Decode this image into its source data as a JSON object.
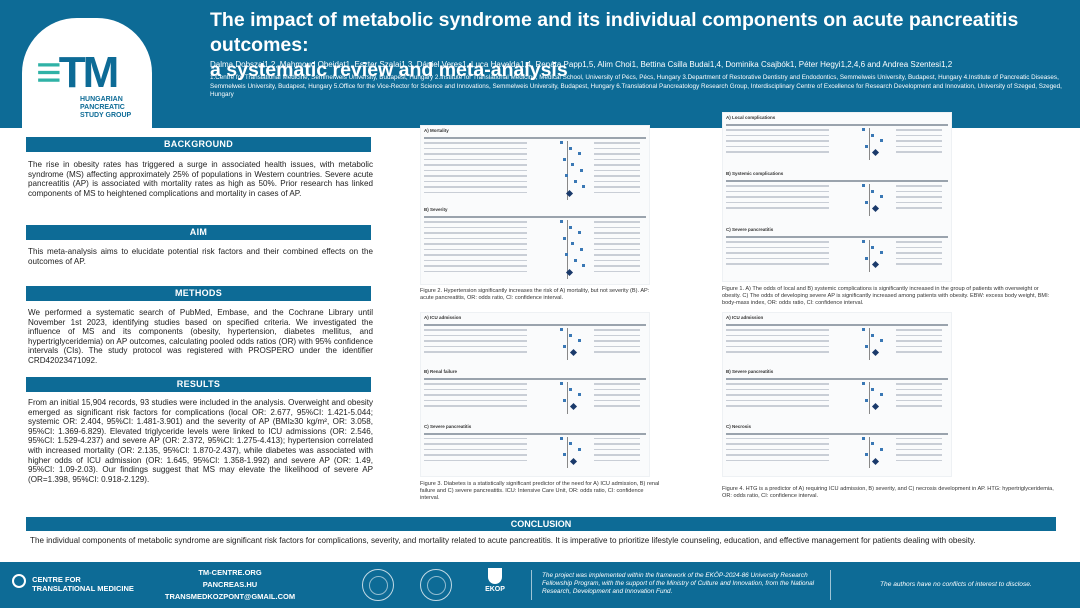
{
  "header": {
    "title_line1": "The impact of metabolic syndrome and its individual components on acute pancreatitis outcomes:",
    "title_line2": "a systematic review and meta-analysis",
    "authors": "Dalma Dobszai1,2, Mahmoud Obeidat1, Eszter Szalai1,3, Dániel Veres1, Luca Havelda1,4, Renáta Papp1,5, Alim Choi1, Bettina Csilla Budai1,4, Dominika Csajbók1, Péter Hegyi1,2,4,6 and Andrea Szentesi1,2",
    "affiliations": "1.Centre for Translational Medicine, Semmelweis University, Budapest, Hungary 2.Institute for Translational Medicine, Medical School, University of Pécs, Pécs, Hungary 3.Department of Restorative Dentistry and Endodontics, Semmelweis University, Budapest, Hungary 4.Institute of Pancreatic Diseases, Semmelweis University, Budapest, Hungary 5.Office for the Vice-Rector for Science and Innovations, Semmelweis University, Budapest, Hungary 6.Translational Pancreatology Research Group, Interdisciplinary Centre of Excellence for Research Development and Innovation, University of Szeged, Szeged, Hungary",
    "logo_letters": "TM",
    "logo_sub1": "HUNGARIAN",
    "logo_sub2": "PANCREATIC",
    "logo_sub3": "STUDY GROUP"
  },
  "sections": {
    "background_title": "BACKGROUND",
    "background_text": "The rise in obesity rates has triggered a surge in associated health issues, with metabolic syndrome (MS) affecting approximately 25% of populations in Western countries. Severe acute pancreatitis (AP) is associated with mortality rates as high as 50%. Prior research has linked components of MS to heightened complications and mortality in cases of AP.",
    "aim_title": "AIM",
    "aim_text": "This meta-analysis aims to elucidate potential risk factors and their combined effects on the outcomes of AP.",
    "methods_title": "METHODS",
    "methods_text": "We performed a systematic search of PubMed, Embase, and the Cochrane Library until November 1st 2023, identifying studies based on specified criteria. We investigated the influence of MS and its components (obesity, hypertension, diabetes mellitus, and hypertriglyceridemia) on AP outcomes, calculating pooled odds ratios (OR) with 95% confidence intervals (CIs). The study protocol was registered with PROSPERO under the identifier CRD42023471092.",
    "results_title": "RESULTS",
    "results_text": "From an initial 15,904 records, 93 studies were included in the analysis. Overweight and obesity emerged as significant risk factors for complications (local OR: 2.677, 95%CI: 1.421-5.044; systemic OR: 2.404, 95%CI: 1.481-3.901) and the severity of AP (BMI≥30 kg/m², OR: 3.058, 95%CI: 1.369-6.829). Elevated triglyceride levels were linked to ICU admissions (OR: 2.546, 95%CI: 1.529-4.237) and severe AP (OR: 2.372, 95%CI: 1.275-4.413); hypertension correlated with increased mortality (OR: 2.135, 95%CI: 1.870-2.437), while diabetes was associated with higher odds of ICU admission (OR: 1.645, 95%CI: 1.358-1.992) and severe AP (OR: 1.49, 95%CI: 1.09-2.03). Our findings suggest that MS may elevate the likelihood of severe AP (OR=1.398, 95%CI: 0.918-2.129).",
    "conclusion_title": "CONCLUSION",
    "conclusion_text": "The individual components of metabolic syndrome are significant risk factors for complications, severity, and mortality related to acute pancreatitis. It is imperative to prioritize lifestyle counseling, education, and effective management for patients dealing with obesity."
  },
  "figures": {
    "fig2_label_a": "A) Mortality",
    "fig2_label_b": "B) Severity",
    "fig2_caption": "Figure 2. Hypertension significantly increases the risk of A) mortality, but not severity (B). AP: acute pancreatitis, OR: odds ratio, CI: confidence interval.",
    "fig1_label_a": "A) Local complications",
    "fig1_label_b": "B) Systemic complications",
    "fig1_label_c": "C) Severe pancreatitis",
    "fig1_caption": "Figure 1. A) The odds of local and B) systemic complications is significantly increased in the group of patients with overweight or obesity. C) The odds of developing severe AP is significantly increased among patients with obesity. EBW: excess body weight, BMI: body-mass index, OR: odds ratio, CI: confidence interval.",
    "fig3_label_a": "A) ICU admission",
    "fig3_label_b": "B) Renal failure",
    "fig3_label_c": "C) Severe pancreatitis",
    "fig3_caption": "Figure 3. Diabetes is a statistically significant predictor of the need for A) ICU admission, B) renal failure and C) severe pancreatitis. ICU: Intensive Care Unit, OR: odds ratio, CI: confidence interval.",
    "fig4_label_a": "A) ICU admission",
    "fig4_label_b": "B) Severe pancreatitis",
    "fig4_label_c": "C) Necrosis",
    "fig4_caption": "Figure 4. HTG is a predictor of A) requiring ICU admission, B) severity, and C) necrosis development in AP. HTG: hypertriglyceridemia, OR: odds ratio, CI: confidence interval."
  },
  "footer": {
    "ctl_line1": "CENTRE FOR",
    "ctl_line2": "TRANSLATIONAL MEDICINE",
    "link1": "TM-CENTRE.ORG",
    "link2": "PANCREAS.HU",
    "link3": "TRANSMEDKOZPONT@GMAIL.COM",
    "ekop": "EKOP",
    "project_text": "The project was implemented within the framework of the EKÖP-2024-86 University Research Fellowship Program, with the support of the Ministry of Culture and Innovation, from the National Research, Development and Innovation Fund.",
    "conflict_text": "The authors have no conflicts of interest to disclose."
  }
}
